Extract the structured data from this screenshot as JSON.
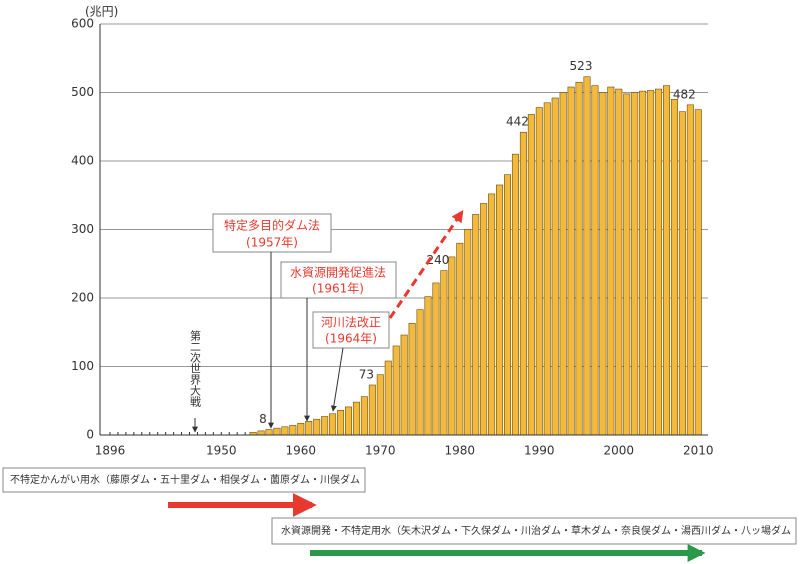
{
  "chart_data": {
    "type": "bar",
    "y_unit": "(兆円)",
    "categories": [
      "1896",
      null,
      null,
      null,
      null,
      null,
      null,
      null,
      null,
      null,
      null,
      null,
      null,
      null,
      "1950",
      null,
      null,
      null,
      null,
      null,
      null,
      null,
      null,
      null,
      "1960",
      null,
      null,
      null,
      null,
      null,
      null,
      null,
      null,
      null,
      "1970",
      null,
      null,
      null,
      null,
      null,
      null,
      null,
      null,
      null,
      "1980",
      null,
      null,
      null,
      null,
      null,
      null,
      null,
      null,
      null,
      "1990",
      null,
      null,
      null,
      null,
      null,
      null,
      null,
      null,
      null,
      "2000",
      null,
      null,
      null,
      null,
      null,
      null,
      null,
      null,
      null,
      "2010"
    ],
    "values": [
      null,
      null,
      null,
      null,
      null,
      null,
      null,
      null,
      null,
      null,
      null,
      null,
      null,
      null,
      null,
      null,
      null,
      null,
      4,
      6,
      8,
      10,
      12,
      14,
      17,
      20,
      23,
      27,
      31,
      36,
      41,
      48,
      56,
      73,
      88,
      108,
      130,
      146,
      163,
      183,
      202,
      222,
      240,
      260,
      280,
      300,
      322,
      338,
      352,
      365,
      380,
      410,
      442,
      468,
      478,
      485,
      492,
      500,
      508,
      515,
      523,
      510,
      500,
      508,
      505,
      498,
      500,
      502,
      503,
      505,
      510,
      490,
      472,
      482,
      475
    ],
    "value_labels": [
      null,
      null,
      null,
      null,
      null,
      null,
      null,
      null,
      null,
      null,
      null,
      null,
      null,
      null,
      null,
      null,
      null,
      null,
      null,
      null,
      "8",
      null,
      null,
      null,
      null,
      null,
      null,
      null,
      null,
      null,
      null,
      null,
      null,
      "73",
      null,
      null,
      null,
      null,
      null,
      null,
      null,
      null,
      "240",
      null,
      null,
      null,
      null,
      null,
      null,
      null,
      null,
      null,
      "442",
      null,
      null,
      null,
      null,
      null,
      null,
      null,
      "523",
      null,
      null,
      null,
      null,
      null,
      null,
      null,
      null,
      null,
      null,
      null,
      null,
      "482",
      null
    ],
    "color": "#f2b93b",
    "ylim": [
      0,
      600
    ],
    "yticks": [
      0,
      100,
      200,
      300,
      400,
      500,
      600
    ],
    "grid": true,
    "annotations": [
      {
        "lines": [
          "特定多目的ダム法",
          "(1957年)"
        ]
      },
      {
        "lines": [
          "水資源開発促進法",
          "(1961年)"
        ]
      },
      {
        "lines": [
          "河川法改正",
          "(1964年)"
        ]
      },
      {
        "lines": [
          "第二次世界大戦"
        ]
      }
    ],
    "periods": [
      {
        "text": "不特定かんがい用水（藤原ダム・五十里ダム・相俣ダム・薗原ダム・川俣ダム",
        "color": "#e8392f"
      },
      {
        "text": "水資源開発・不特定用水（矢木沢ダム・下久保ダム・川治ダム・草木ダム・奈良俣ダム・湯西川ダム・八ッ場ダム",
        "color": "#2a9a4a"
      }
    ]
  }
}
